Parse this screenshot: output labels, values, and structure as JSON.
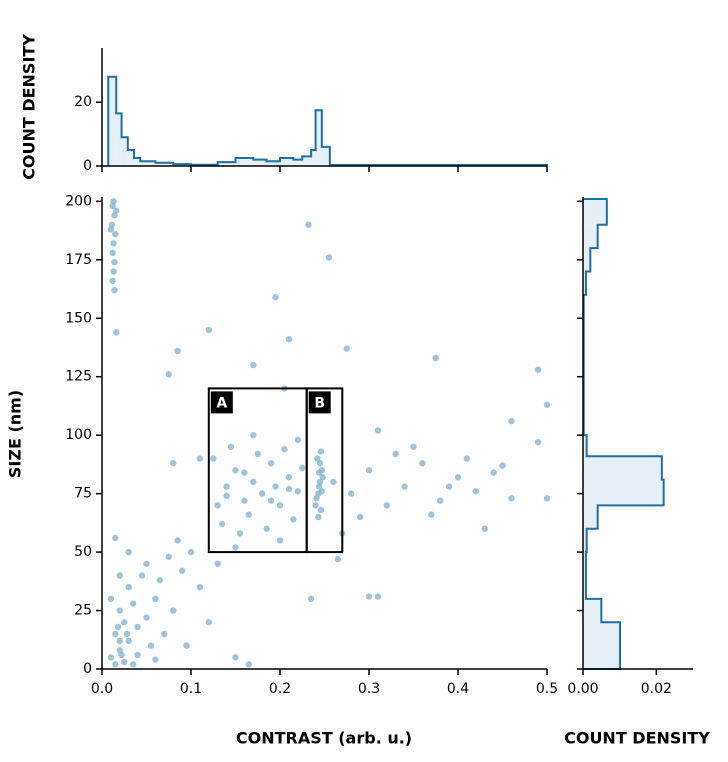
{
  "chart_data": [
    {
      "type": "scatter",
      "xlabel": "CONTRAST (arb. u.)",
      "ylabel": "SIZE (nm)",
      "xlim": [
        0,
        0.5
      ],
      "ylim": [
        0,
        201
      ],
      "xticks": [
        {
          "value": 0,
          "label": "0.0"
        },
        0.1,
        0.2,
        0.3,
        0.4,
        0.5
      ],
      "yticks": [
        0,
        25,
        50,
        75,
        100,
        125,
        150,
        175,
        200
      ],
      "color": "#7fb0cc",
      "x": [
        0.012,
        0.014,
        0.011,
        0.015,
        0.013,
        0.012,
        0.014,
        0.013,
        0.012,
        0.014,
        0.016,
        0.01,
        0.013,
        0.01,
        0.02,
        0.03,
        0.015,
        0.025,
        0.04,
        0.02,
        0.035,
        0.01,
        0.05,
        0.03,
        0.045,
        0.06,
        0.02,
        0.015,
        0.025,
        0.04,
        0.055,
        0.07,
        0.08,
        0.065,
        0.09,
        0.1,
        0.075,
        0.05,
        0.03,
        0.11,
        0.12,
        0.095,
        0.085,
        0.02,
        0.018,
        0.022,
        0.028,
        0.035,
        0.06,
        0.13,
        0.15,
        0.165,
        0.015,
        0.08,
        0.11,
        0.075,
        0.085,
        0.12,
        0.195,
        0.21,
        0.232,
        0.255,
        0.275,
        0.205,
        0.17,
        0.375,
        0.49,
        0.5,
        0.46,
        0.49,
        0.5,
        0.3,
        0.31,
        0.235,
        0.016,
        0.13,
        0.14,
        0.15,
        0.16,
        0.17,
        0.18,
        0.19,
        0.2,
        0.21,
        0.22,
        0.125,
        0.135,
        0.145,
        0.155,
        0.165,
        0.175,
        0.185,
        0.195,
        0.205,
        0.215,
        0.225,
        0.15,
        0.2,
        0.17,
        0.22,
        0.14,
        0.19,
        0.16,
        0.21,
        0.24,
        0.243,
        0.245,
        0.247,
        0.242,
        0.246,
        0.244,
        0.248,
        0.241,
        0.245,
        0.247,
        0.243,
        0.246,
        0.244,
        0.26,
        0.28,
        0.3,
        0.32,
        0.34,
        0.36,
        0.38,
        0.4,
        0.42,
        0.44,
        0.29,
        0.33,
        0.37,
        0.41,
        0.43,
        0.46,
        0.31,
        0.35,
        0.39,
        0.45,
        0.27,
        0.265
      ],
      "values": [
        198,
        194,
        190,
        186,
        182,
        178,
        174,
        170,
        166,
        162,
        196,
        188,
        200,
        5,
        8,
        12,
        15,
        20,
        18,
        25,
        28,
        30,
        22,
        35,
        40,
        30,
        40,
        2,
        3,
        6,
        10,
        15,
        25,
        38,
        42,
        50,
        48,
        45,
        50,
        35,
        20,
        10,
        55,
        12,
        18,
        6,
        15,
        2,
        4,
        45,
        5,
        2,
        56,
        88,
        90,
        126,
        136,
        145,
        159,
        141,
        190,
        176,
        137,
        120,
        130,
        133,
        128,
        113,
        106,
        97,
        73,
        31,
        31,
        30,
        144,
        70,
        78,
        85,
        72,
        80,
        75,
        88,
        70,
        82,
        76,
        90,
        62,
        95,
        58,
        66,
        92,
        60,
        78,
        94,
        64,
        86,
        52,
        55,
        100,
        98,
        74,
        72,
        84,
        77,
        70,
        75,
        80,
        85,
        90,
        68,
        78,
        82,
        73,
        88,
        76,
        65,
        93,
        84,
        80,
        75,
        85,
        70,
        78,
        88,
        72,
        82,
        76,
        84,
        65,
        92,
        66,
        90,
        60,
        73,
        102,
        95,
        78,
        87,
        58,
        47
      ],
      "regions": [
        {
          "label": "A",
          "x": [
            0.12,
            0.23
          ],
          "y": [
            50,
            120
          ]
        },
        {
          "label": "B",
          "x": [
            0.23,
            0.27
          ],
          "y": [
            50,
            120
          ]
        }
      ]
    },
    {
      "type": "histogram",
      "ylabel": "COUNT DENSITY",
      "ylim": [
        0,
        37
      ],
      "yticks": [
        0,
        20
      ],
      "color": "#1f6fa3",
      "bins": [
        0.007,
        0.016,
        0.022,
        0.029,
        0.036,
        0.043,
        0.06,
        0.08,
        0.1,
        0.13,
        0.15,
        0.17,
        0.185,
        0.2,
        0.215,
        0.225,
        0.235,
        0.24,
        0.247,
        0.256,
        0.5
      ],
      "counts": [
        28,
        16.5,
        9,
        5,
        2.5,
        1.5,
        1,
        0.6,
        0.4,
        1.2,
        2.5,
        2,
        1.5,
        2.5,
        2,
        3,
        5,
        17.5,
        6,
        0.3
      ]
    },
    {
      "type": "histogram-horizontal",
      "xlabel": "COUNT DENSITY",
      "xlim": [
        0,
        0.03
      ],
      "xticks": [
        {
          "value": 0,
          "label": "0.00"
        },
        0.02
      ],
      "color": "#1f6fa3",
      "bins": [
        0,
        20,
        30,
        50,
        60,
        70,
        81,
        91,
        100,
        160,
        170,
        180,
        190,
        201
      ],
      "counts": [
        0.0101,
        0.005,
        0.0008,
        0.001,
        0.004,
        0.022,
        0.0215,
        0.001,
        0.0002,
        0.0008,
        0.002,
        0.004,
        0.0065
      ]
    }
  ]
}
